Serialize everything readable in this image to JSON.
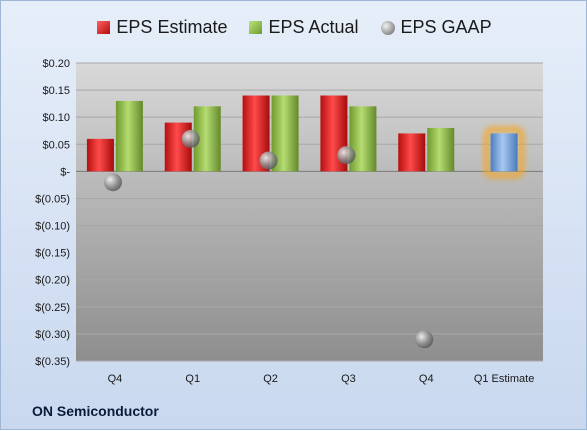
{
  "legend": {
    "estimate": "EPS Estimate",
    "actual": "EPS Actual",
    "gaap": "EPS GAAP"
  },
  "company": "ON Semiconductor",
  "colors": {
    "estimate": "#d42020",
    "actual": "#8fba48",
    "gaap": "#9a9a9a",
    "future_estimate": "#6f9fd8",
    "future_glow": "#f5a623"
  },
  "chart_data": {
    "type": "bar",
    "categories": [
      "Q4",
      "Q1",
      "Q2",
      "Q3",
      "Q4",
      "Q1 Estimate"
    ],
    "series": [
      {
        "name": "EPS Estimate",
        "values": [
          0.06,
          0.09,
          0.14,
          0.14,
          0.07,
          null
        ]
      },
      {
        "name": "EPS Actual",
        "values": [
          0.13,
          0.12,
          0.14,
          0.12,
          0.08,
          0.07
        ]
      },
      {
        "name": "EPS GAAP",
        "values": [
          -0.02,
          0.06,
          0.02,
          0.03,
          -0.31,
          null
        ]
      }
    ],
    "highlighted_category": "Q1 Estimate",
    "ylim": [
      -0.35,
      0.2
    ],
    "y_ticks": [
      0.2,
      0.15,
      0.1,
      0.05,
      0,
      -0.05,
      -0.1,
      -0.15,
      -0.2,
      -0.25,
      -0.3,
      -0.35
    ],
    "y_tick_labels": [
      "$0.20",
      "$0.15",
      "$0.10",
      "$0.05",
      "$-",
      "$(0.05)",
      "$(0.10)",
      "$(0.15)",
      "$(0.20)",
      "$(0.25)",
      "$(0.30)",
      "$(0.35)"
    ],
    "grid": true,
    "legend_position": "top"
  }
}
